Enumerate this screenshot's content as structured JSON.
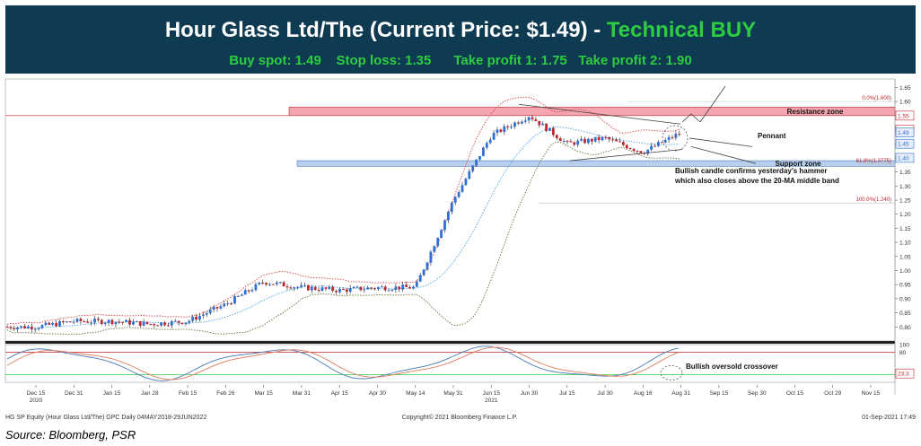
{
  "header": {
    "title_main": "Hour Glass Ltd/The (Current Price: $1.49) -",
    "title_signal": "Technical BUY",
    "trade_levels": "Buy spot: 1.49    Stop loss: 1.35      Take profit 1: 1.75   Take profit 2: 1.90"
  },
  "footer": {
    "meta_left": "HG SP Equity (Hour Glass Ltd/The) GPC  Daily 04MAY2018-29JUN2022",
    "meta_center": "Copyright© 2021 Bloomberg Finance L.P.",
    "meta_right": "01-Sep-2021 17:49",
    "source": "Source: Bloomberg, PSR"
  },
  "colors": {
    "banner": "#0e3a52",
    "signal_green": "#2ecc40",
    "up_candle": "#2f6fd6",
    "down_candle": "#c0272d",
    "resistance_fill": "#f4a5b0",
    "support_fill": "#b8cfee",
    "bollinger": "#d8414a",
    "ma20": "#4aa3df",
    "lower_band": "#6b6b3a"
  },
  "chart_data": [
    {
      "type": "line",
      "subtype": "candlestick",
      "ylim": [
        0.75,
        1.68
      ],
      "yticks": [
        "1.65",
        "1.60",
        "1.55",
        "1.50",
        "1.45",
        "1.40",
        "1.35",
        "1.30",
        "1.25",
        "1.20",
        "1.15",
        "1.10",
        "1.05",
        "1.00",
        "0.95",
        "0.90",
        "0.85",
        "0.80"
      ],
      "ytick_values": [
        1.65,
        1.6,
        1.55,
        1.5,
        1.45,
        1.4,
        1.35,
        1.3,
        1.25,
        1.2,
        1.15,
        1.1,
        1.05,
        1.0,
        0.95,
        0.9,
        0.85,
        0.8
      ],
      "xticks": [
        "Dec 15",
        "Dec 31",
        "Jan 15",
        "Jan 28",
        "Feb 15",
        "Feb 26",
        "Mar 15",
        "Mar 31",
        "Apr 15",
        "Apr 30",
        "May 14",
        "May 31",
        "Jun 15",
        "Jun 30",
        "Jul 15",
        "Jul 30",
        "Aug 16",
        "Aug 31",
        "Sep 15",
        "Sep 30",
        "Oct 15",
        "Oct 29",
        "Nov 15"
      ],
      "year_labels": [
        {
          "label": "2020",
          "at": "Dec 15"
        },
        {
          "label": "2021",
          "at": "Jun 15"
        }
      ],
      "price_labels": [
        "1.55",
        "1.50",
        "1.49",
        "1.45",
        "1.40"
      ],
      "price_label_values": [
        1.55,
        1.5,
        1.49,
        1.45,
        1.4
      ],
      "fib_levels": [
        {
          "label": "0.0%(1.600)",
          "value": 1.6
        },
        {
          "label": "61.8%(1.3775)",
          "value": 1.3775
        },
        {
          "label": "100.0%(1.240)",
          "value": 1.24
        }
      ],
      "zones": [
        {
          "label": "Resistance zone",
          "low": 1.55,
          "high": 1.58
        },
        {
          "label": "Support zone",
          "low": 1.37,
          "high": 1.39
        }
      ],
      "annotations": [
        "Pennant",
        "Bullish candle confirms yesterday's hammer",
        "which also closes above the 20-MA middle band"
      ],
      "series": [
        {
          "x": [
            "Dec 15",
            "Dec 31",
            "Jan 15",
            "Jan 28",
            "Feb 15",
            "Feb 26",
            "Mar 15",
            "Mar 31",
            "Apr 15",
            "Apr 30",
            "May 14",
            "May 31",
            "Jun 15",
            "Jun 30",
            "Jul 15",
            "Jul 30",
            "Aug 16",
            "Aug 31"
          ],
          "values": [
            0.8,
            0.82,
            0.82,
            0.81,
            0.82,
            0.88,
            0.96,
            0.94,
            0.93,
            0.94,
            0.94,
            1.25,
            1.48,
            1.55,
            1.45,
            1.47,
            1.42,
            1.49
          ]
        }
      ]
    },
    {
      "type": "line",
      "ylim": [
        0,
        100
      ],
      "yticks": [
        "100",
        "80"
      ],
      "ytick_values": [
        100,
        80
      ],
      "current_value_label": "23.3",
      "current_value": 23.3,
      "annotations": [
        "Bullish oversold crossover"
      ]
    }
  ]
}
